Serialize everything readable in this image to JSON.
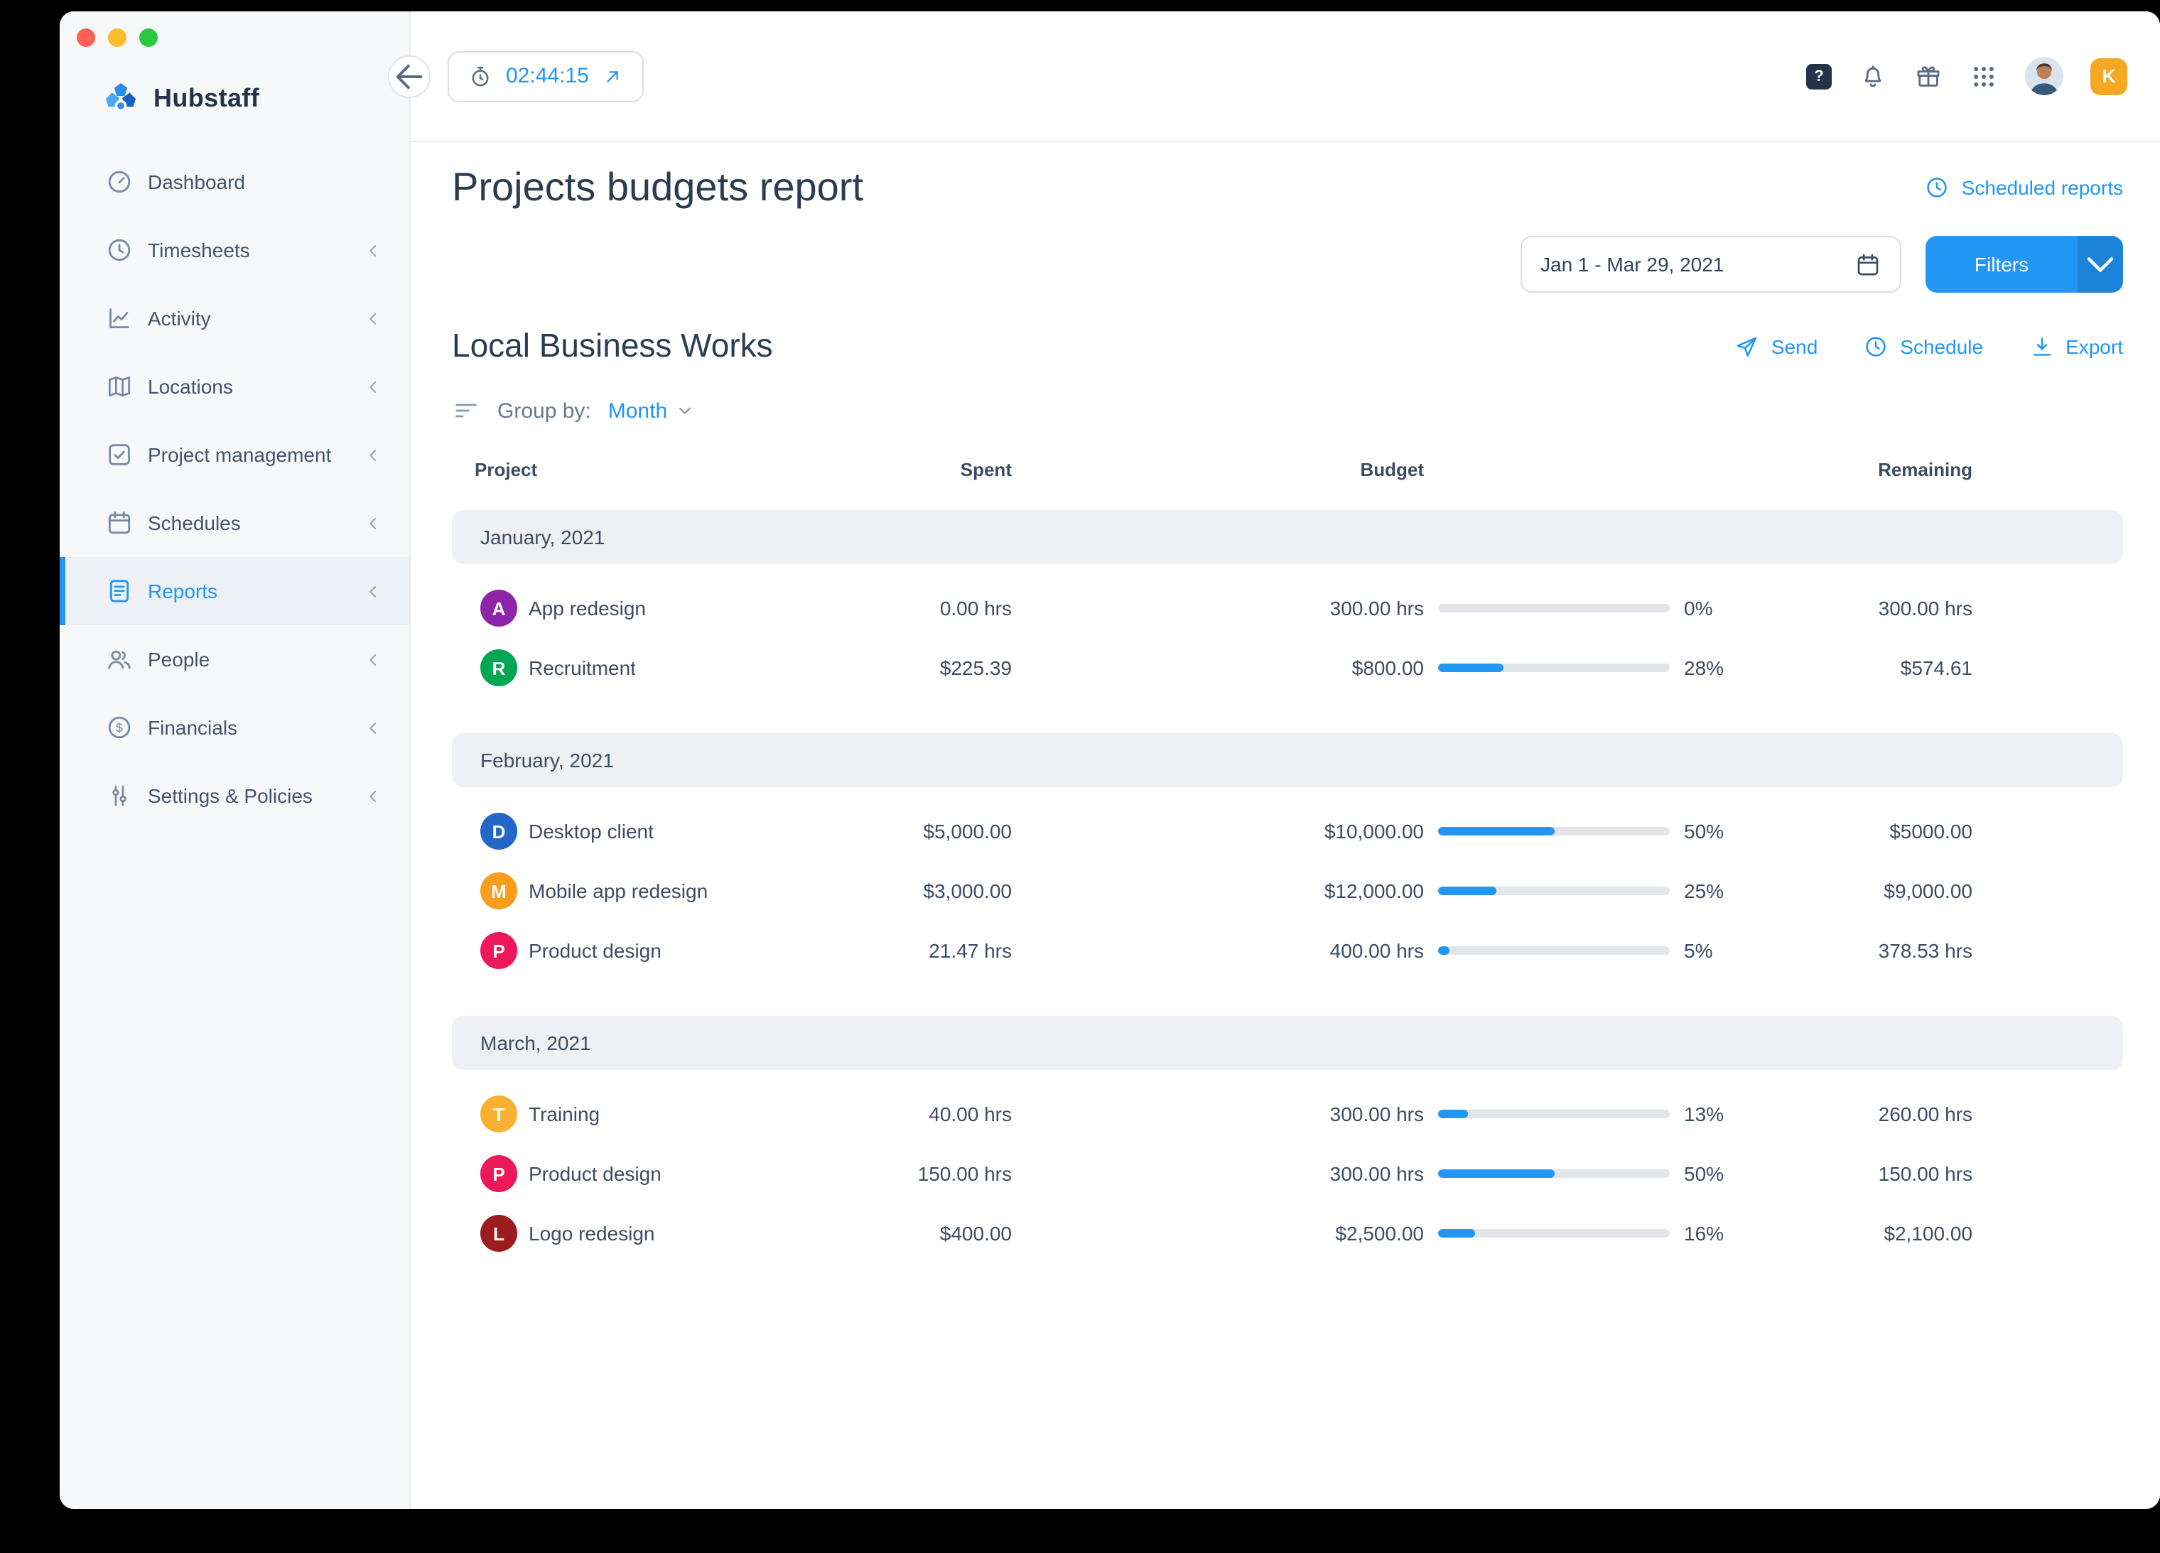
{
  "colors": {
    "accent": "#2196f3",
    "traffic_close": "#ff5f57",
    "traffic_minimize": "#febc2e",
    "traffic_zoom": "#28c840"
  },
  "topbar": {
    "timer_value": "02:44:15",
    "help_glyph": "?",
    "workspace_initial": "K",
    "icons": [
      "stopwatch-icon",
      "open-timer-icon",
      "help-icon",
      "bell-icon",
      "gift-icon",
      "apps-grid-icon",
      "avatar",
      "workspace-badge"
    ]
  },
  "sidebar": {
    "brand": "Hubstaff",
    "items": [
      {
        "label": "Dashboard",
        "icon": "dashboard-icon",
        "chevron": false,
        "active": false
      },
      {
        "label": "Timesheets",
        "icon": "timesheets-icon",
        "chevron": true,
        "active": false
      },
      {
        "label": "Activity",
        "icon": "activity-icon",
        "chevron": true,
        "active": false
      },
      {
        "label": "Locations",
        "icon": "locations-icon",
        "chevron": true,
        "active": false
      },
      {
        "label": "Project management",
        "icon": "project-management-icon",
        "chevron": true,
        "active": false
      },
      {
        "label": "Schedules",
        "icon": "schedules-icon",
        "chevron": true,
        "active": false
      },
      {
        "label": "Reports",
        "icon": "reports-icon",
        "chevron": true,
        "active": true
      },
      {
        "label": "People",
        "icon": "people-icon",
        "chevron": true,
        "active": false
      },
      {
        "label": "Financials",
        "icon": "financials-icon",
        "chevron": true,
        "active": false
      },
      {
        "label": "Settings & Policies",
        "icon": "settings-icon",
        "chevron": true,
        "active": false
      }
    ]
  },
  "report": {
    "title": "Projects budgets report",
    "scheduled_reports_label": "Scheduled reports",
    "date_range": "Jan 1 - Mar 29, 2021",
    "filters_label": "Filters",
    "org_name": "Local Business Works",
    "send_label": "Send",
    "schedule_label": "Schedule",
    "export_label": "Export",
    "group_by_label": "Group by:",
    "group_by_value": "Month",
    "columns": [
      "Project",
      "Spent",
      "Budget",
      "Remaining"
    ],
    "groups": [
      {
        "label": "January, 2021",
        "rows": [
          {
            "initial": "A",
            "color": "#8e24aa",
            "name": "App redesign",
            "spent": "0.00 hrs",
            "budget": "300.00 hrs",
            "percent": 0,
            "percent_label": "0%",
            "remaining": "300.00 hrs"
          },
          {
            "initial": "R",
            "color": "#00a651",
            "name": "Recruitment",
            "spent": "$225.39",
            "budget": "$800.00",
            "percent": 28,
            "percent_label": "28%",
            "remaining": "$574.61"
          }
        ]
      },
      {
        "label": "February, 2021",
        "rows": [
          {
            "initial": "D",
            "color": "#2266c8",
            "name": "Desktop client",
            "spent": "$5,000.00",
            "budget": "$10,000.00",
            "percent": 50,
            "percent_label": "50%",
            "remaining": "$5000.00"
          },
          {
            "initial": "M",
            "color": "#f99d1c",
            "name": "Mobile app redesign",
            "spent": "$3,000.00",
            "budget": "$12,000.00",
            "percent": 25,
            "percent_label": "25%",
            "remaining": "$9,000.00"
          },
          {
            "initial": "P",
            "color": "#ed185a",
            "name": "Product design",
            "spent": "21.47 hrs",
            "budget": "400.00 hrs",
            "percent": 5,
            "percent_label": "5%",
            "remaining": "378.53 hrs"
          }
        ]
      },
      {
        "label": "March, 2021",
        "rows": [
          {
            "initial": "T",
            "color": "#f9b033",
            "name": "Training",
            "spent": "40.00 hrs",
            "budget": "300.00 hrs",
            "percent": 13,
            "percent_label": "13%",
            "remaining": "260.00 hrs"
          },
          {
            "initial": "P",
            "color": "#ed185a",
            "name": "Product design",
            "spent": "150.00 hrs",
            "budget": "300.00 hrs",
            "percent": 50,
            "percent_label": "50%",
            "remaining": "150.00 hrs"
          },
          {
            "initial": "L",
            "color": "#9b1d1d",
            "name": "Logo redesign",
            "spent": "$400.00",
            "budget": "$2,500.00",
            "percent": 16,
            "percent_label": "16%",
            "remaining": "$2,100.00"
          }
        ]
      }
    ]
  }
}
